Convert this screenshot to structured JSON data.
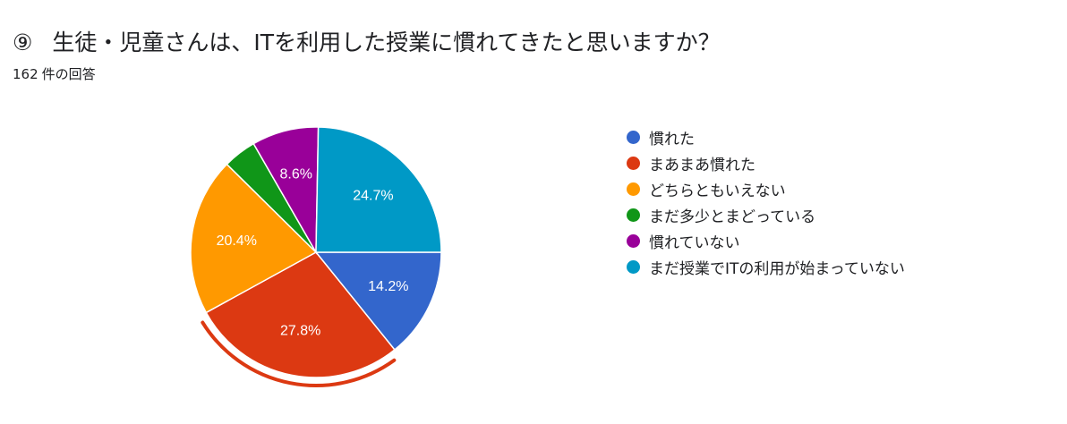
{
  "header": {
    "question_number": "⑨",
    "question_text": "生徒・児童さんは、ITを利用した授業に慣れてきたと思いますか？",
    "response_count": "162",
    "response_suffix": "件の回答"
  },
  "chart_data": {
    "type": "pie",
    "title": "⑨ 生徒・児童さんは、ITを利用した授業に慣れてきたと思いますか？",
    "legend_position": "right",
    "highlighted_slice": "まあまあ慣れた",
    "slices": [
      {
        "label": "慣れた",
        "value": 14.2,
        "display": "14.2%",
        "color": "#3366cc"
      },
      {
        "label": "まあまあ慣れた",
        "value": 27.8,
        "display": "27.8%",
        "color": "#dc3912"
      },
      {
        "label": "どちらともいえない",
        "value": 20.4,
        "display": "20.4%",
        "color": "#ff9900"
      },
      {
        "label": "まだ多少とまどっている",
        "value": 4.3,
        "display": "",
        "color": "#109618"
      },
      {
        "label": "慣れていない",
        "value": 8.6,
        "display": "8.6%",
        "color": "#990099"
      },
      {
        "label": "まだ授業でITの利用が始まっていない",
        "value": 24.7,
        "display": "24.7%",
        "color": "#0099c6"
      }
    ]
  }
}
